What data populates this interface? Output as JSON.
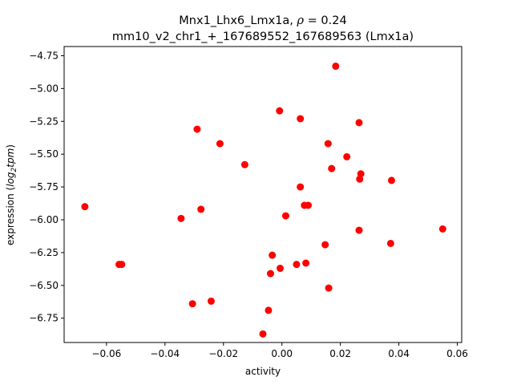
{
  "chart_data": {
    "type": "scatter",
    "title_line1": "Mnx1_Lhx6_Lmx1a, ",
    "title_rho_symbol": "ρ",
    "title_rho_value": " = 0.24",
    "title_line2": "mm10_v2_chr1_+_167689552_167689563 (Lmx1a)",
    "xlabel": "activity",
    "ylabel_prefix": "expression (",
    "ylabel_log": "log",
    "ylabel_sub": "2",
    "ylabel_tpm": "tpm",
    "ylabel_suffix": ")",
    "xlim": [
      -0.0745,
      0.0615
    ],
    "ylim": [
      -6.935,
      -4.68
    ],
    "xticks": [
      {
        "value": -0.06,
        "label": "−0.06"
      },
      {
        "value": -0.04,
        "label": "−0.04"
      },
      {
        "value": -0.02,
        "label": "−0.02"
      },
      {
        "value": 0.0,
        "label": "0.00"
      },
      {
        "value": 0.02,
        "label": "0.02"
      },
      {
        "value": 0.04,
        "label": "0.04"
      },
      {
        "value": 0.06,
        "label": "0.06"
      }
    ],
    "yticks": [
      {
        "value": -4.75,
        "label": "−4.75"
      },
      {
        "value": -5.0,
        "label": "−5.00"
      },
      {
        "value": -5.25,
        "label": "−5.25"
      },
      {
        "value": -5.5,
        "label": "−5.50"
      },
      {
        "value": -5.75,
        "label": "−5.75"
      },
      {
        "value": -6.0,
        "label": "−6.00"
      },
      {
        "value": -6.25,
        "label": "−6.25"
      },
      {
        "value": -6.5,
        "label": "−6.50"
      },
      {
        "value": -6.75,
        "label": "−6.75"
      }
    ],
    "grid": false,
    "point_color": "#ff0000",
    "points": [
      {
        "x": 0.0184,
        "y": -4.83
      },
      {
        "x": -0.0008,
        "y": -5.17
      },
      {
        "x": 0.0063,
        "y": -5.23
      },
      {
        "x": 0.0264,
        "y": -5.26
      },
      {
        "x": -0.029,
        "y": -5.31
      },
      {
        "x": -0.0212,
        "y": -5.42
      },
      {
        "x": 0.0158,
        "y": -5.42
      },
      {
        "x": 0.0222,
        "y": -5.52
      },
      {
        "x": -0.0127,
        "y": -5.58
      },
      {
        "x": 0.017,
        "y": -5.61
      },
      {
        "x": 0.027,
        "y": -5.65
      },
      {
        "x": 0.0266,
        "y": -5.69
      },
      {
        "x": 0.0375,
        "y": -5.7
      },
      {
        "x": 0.0063,
        "y": -5.75
      },
      {
        "x": -0.0674,
        "y": -5.9
      },
      {
        "x": 0.0077,
        "y": -5.89
      },
      {
        "x": 0.009,
        "y": -5.89
      },
      {
        "x": -0.0277,
        "y": -5.92
      },
      {
        "x": 0.0013,
        "y": -5.97
      },
      {
        "x": -0.0345,
        "y": -5.99
      },
      {
        "x": 0.0264,
        "y": -6.08
      },
      {
        "x": 0.055,
        "y": -6.07
      },
      {
        "x": 0.0372,
        "y": -6.18
      },
      {
        "x": 0.0148,
        "y": -6.19
      },
      {
        "x": -0.0033,
        "y": -6.27
      },
      {
        "x": -0.0557,
        "y": -6.34
      },
      {
        "x": -0.0548,
        "y": -6.34
      },
      {
        "x": 0.005,
        "y": -6.34
      },
      {
        "x": 0.0082,
        "y": -6.33
      },
      {
        "x": -0.0006,
        "y": -6.37
      },
      {
        "x": -0.0039,
        "y": -6.41
      },
      {
        "x": 0.016,
        "y": -6.52
      },
      {
        "x": -0.0242,
        "y": -6.62
      },
      {
        "x": -0.0306,
        "y": -6.64
      },
      {
        "x": -0.0046,
        "y": -6.69
      },
      {
        "x": -0.0065,
        "y": -6.87
      }
    ]
  }
}
